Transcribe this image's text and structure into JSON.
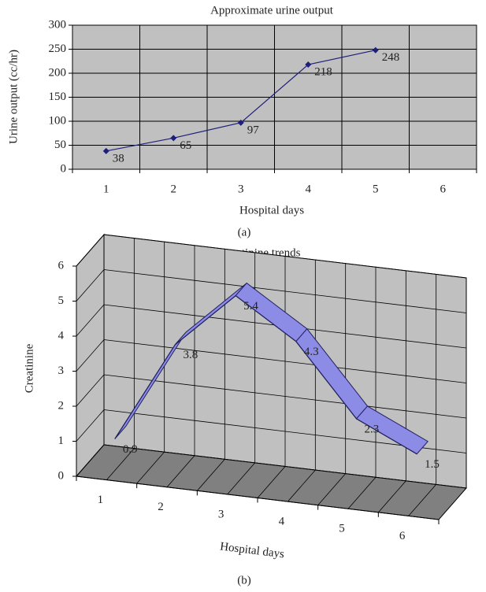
{
  "chart_data": [
    {
      "type": "line",
      "title": "Approximate urine output",
      "y_label": "Urine output (cc/hr)",
      "x_label": "Hospital days",
      "caption": "(a)",
      "categories": [
        "1",
        "2",
        "3",
        "4",
        "5",
        "6"
      ],
      "values": [
        38,
        65,
        97,
        218,
        248,
        null
      ],
      "color": "#1f1f7a",
      "plot_color": "#c0c0c0",
      "ylim": [
        0,
        300
      ],
      "yticks": [
        0,
        50,
        100,
        150,
        200,
        250,
        300
      ],
      "grid": true
    },
    {
      "type": "line3d",
      "title": "Creatinine trends",
      "y_label": "Creatinine",
      "x_label": "Hospital days",
      "caption": "(b)",
      "categories": [
        "1",
        "2",
        "3",
        "4",
        "5",
        "6"
      ],
      "values": [
        0.9,
        3.8,
        5.4,
        4.3,
        2.3,
        1.5
      ],
      "color": "#8c8ce6",
      "plot_color": "#c0c0c0",
      "ylim": [
        0,
        6
      ],
      "yticks": [
        0,
        1,
        2,
        3,
        4,
        5,
        6
      ],
      "grid": true
    }
  ]
}
